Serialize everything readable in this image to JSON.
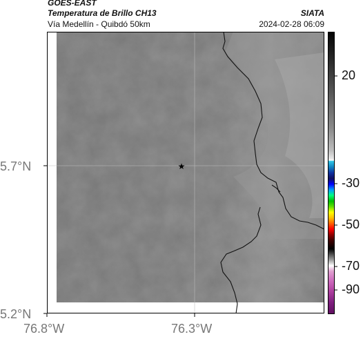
{
  "header": {
    "satellite": "GOES-EAST",
    "product": "Temperatura de Brillo CH13",
    "agency": "SIATA",
    "region": "Vía Medellín - Quibdó 50km",
    "datetime": "2024-02-28 06:09"
  },
  "axes": {
    "lat_ticks": [
      "5.7°N",
      "5.2°N"
    ],
    "lon_ticks": [
      "76.8°W",
      "76.3°W"
    ]
  },
  "colorbar": {
    "tick_labels": [
      "20",
      "-30",
      "-50",
      "-70",
      "-90"
    ]
  },
  "colors": {
    "cloud_gray": "#7a7a7a",
    "border_line": "#111111"
  },
  "map": {
    "marker": "star-marker",
    "layer": "brightness-temperature-grayscale"
  }
}
